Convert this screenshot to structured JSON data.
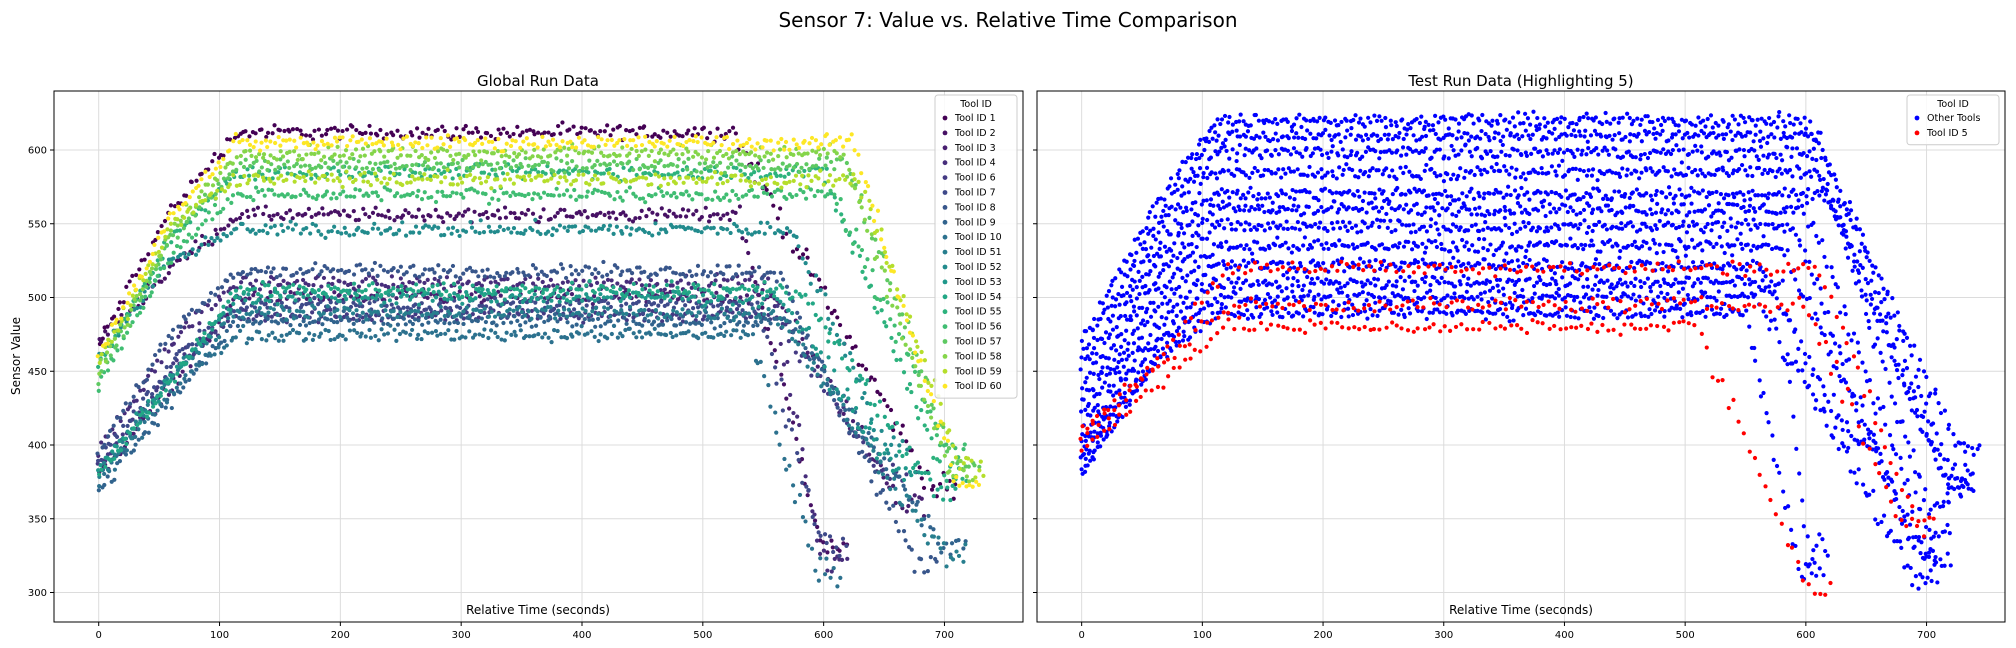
{
  "figure": {
    "title": "Sensor 7: Value vs. Relative Time Comparison"
  },
  "chart_data": [
    {
      "type": "scatter",
      "title": "Global Run Data",
      "xlabel": "Relative Time (seconds)",
      "ylabel": "Sensor Value",
      "xlim": [
        -37,
        765
      ],
      "ylim": [
        280,
        640
      ],
      "xticks": [
        0,
        100,
        200,
        300,
        400,
        500,
        600,
        700
      ],
      "yticks": [
        300,
        350,
        400,
        450,
        500,
        550,
        600
      ],
      "grid": true,
      "legend": {
        "title": "Tool ID",
        "placement": "top-right"
      },
      "colormap": "viridis",
      "series": [
        {
          "name": "Tool ID 1",
          "color": "#440154",
          "profile": {
            "start": 468,
            "r1": [
              60,
              560
            ],
            "r2": [
              115,
              612
            ],
            "plateau_end": 525,
            "drop_end": 690,
            "end": 370
          }
        },
        {
          "name": "Tool ID 2",
          "color": "#471164",
          "profile": {
            "start": 470,
            "r1": [
              60,
              520
            ],
            "r2": [
              115,
              556
            ],
            "plateau_end": 530,
            "drop_end": 600,
            "end": 330
          }
        },
        {
          "name": "Tool ID 3",
          "color": "#481f70",
          "profile": {
            "start": 380,
            "r1": [
              70,
              450
            ],
            "r2": [
              115,
              500
            ],
            "plateau_end": 560,
            "drop_end": 665,
            "end": 360
          }
        },
        {
          "name": "Tool ID 4",
          "color": "#472d7b",
          "profile": {
            "start": 395,
            "r1": [
              60,
              470
            ],
            "r2": [
              115,
              510
            ],
            "plateau_end": 555,
            "drop_end": 600,
            "end": 320
          }
        },
        {
          "name": "Tool ID 6",
          "color": "#443a83",
          "profile": {
            "start": 385,
            "r1": [
              65,
              455
            ],
            "r2": [
              115,
              488
            ],
            "plateau_end": 560,
            "drop_end": 650,
            "end": 380
          }
        },
        {
          "name": "Tool ID 7",
          "color": "#3e4989",
          "profile": {
            "start": 390,
            "r1": [
              65,
              460
            ],
            "r2": [
              115,
              495
            ],
            "plateau_end": 545,
            "drop_end": 600,
            "end": 330
          }
        },
        {
          "name": "Tool ID 8",
          "color": "#38568b",
          "profile": {
            "start": 395,
            "r1": [
              55,
              470
            ],
            "r2": [
              115,
              518
            ],
            "plateau_end": 560,
            "drop_end": 675,
            "end": 320
          }
        },
        {
          "name": "Tool ID 9",
          "color": "#31638d",
          "profile": {
            "start": 370,
            "r1": [
              70,
              440
            ],
            "r2": [
              115,
              484
            ],
            "plateau_end": 570,
            "drop_end": 700,
            "end": 330
          }
        },
        {
          "name": "Tool ID 10",
          "color": "#2c718e",
          "profile": {
            "start": 375,
            "r1": [
              70,
              445
            ],
            "r2": [
              115,
              475
            ],
            "plateau_end": 540,
            "drop_end": 595,
            "end": 315
          }
        },
        {
          "name": "Tool ID 51",
          "color": "#277e8e",
          "profile": {
            "start": 380,
            "r1": [
              65,
              450
            ],
            "r2": [
              115,
              490
            ],
            "plateau_end": 560,
            "drop_end": 700,
            "end": 325
          }
        },
        {
          "name": "Tool ID 52",
          "color": "#228b8d",
          "profile": {
            "start": 460,
            "r1": [
              60,
              525
            ],
            "r2": [
              115,
              546
            ],
            "plateau_end": 575,
            "drop_end": 650,
            "end": 400
          }
        },
        {
          "name": "Tool ID 53",
          "color": "#1f988b",
          "profile": {
            "start": 385,
            "r1": [
              70,
              455
            ],
            "r2": [
              115,
              500
            ],
            "plateau_end": 565,
            "drop_end": 660,
            "end": 380
          }
        },
        {
          "name": "Tool ID 54",
          "color": "#22a785",
          "profile": {
            "start": 380,
            "r1": [
              65,
              450
            ],
            "r2": [
              115,
              505
            ],
            "plateau_end": 580,
            "drop_end": 690,
            "end": 370
          }
        },
        {
          "name": "Tool ID 55",
          "color": "#2db27d",
          "profile": {
            "start": 455,
            "r1": [
              60,
              540
            ],
            "r2": [
              115,
              585
            ],
            "plateau_end": 600,
            "drop_end": 700,
            "end": 380
          }
        },
        {
          "name": "Tool ID 56",
          "color": "#40bd72",
          "profile": {
            "start": 440,
            "r1": [
              60,
              530
            ],
            "r2": [
              115,
              570
            ],
            "plateau_end": 610,
            "drop_end": 700,
            "end": 400
          }
        },
        {
          "name": "Tool ID 57",
          "color": "#5ec962",
          "profile": {
            "start": 445,
            "r1": [
              60,
              540
            ],
            "r2": [
              115,
              590
            ],
            "plateau_end": 620,
            "drop_end": 710,
            "end": 385
          }
        },
        {
          "name": "Tool ID 58",
          "color": "#85d54a",
          "profile": {
            "start": 450,
            "r1": [
              60,
              545
            ],
            "r2": [
              115,
              598
            ],
            "plateau_end": 615,
            "drop_end": 705,
            "end": 380
          }
        },
        {
          "name": "Tool ID 59",
          "color": "#b5de2b",
          "profile": {
            "start": 455,
            "r1": [
              60,
              550
            ],
            "r2": [
              115,
              580
            ],
            "plateau_end": 630,
            "drop_end": 715,
            "end": 385
          }
        },
        {
          "name": "Tool ID 60",
          "color": "#fde725",
          "profile": {
            "start": 460,
            "r1": [
              60,
              555
            ],
            "r2": [
              115,
              605
            ],
            "plateau_end": 625,
            "drop_end": 710,
            "end": 375
          }
        }
      ]
    },
    {
      "type": "scatter",
      "title": "Test Run Data (Highlighting 5)",
      "xlabel": "Relative Time (seconds)",
      "ylabel": "",
      "xlim": [
        -37,
        765
      ],
      "ylim": [
        280,
        640
      ],
      "xticks": [
        0,
        100,
        200,
        300,
        400,
        500,
        600,
        700
      ],
      "yticks": [
        300,
        350,
        400,
        450,
        500,
        550,
        600
      ],
      "grid": true,
      "legend": {
        "title": "Tool ID",
        "placement": "top-right"
      },
      "series": [
        {
          "name": "Other Tools",
          "color": "#0000ff",
          "profile_set": [
            {
              "start": 470,
              "r1": [
                60,
                560
              ],
              "r2": [
                110,
                620
              ],
              "plateau_end": 600,
              "drop_end": 725,
              "end": 400
            },
            {
              "start": 460,
              "r1": [
                60,
                550
              ],
              "r2": [
                110,
                610
              ],
              "plateau_end": 610,
              "drop_end": 720,
              "end": 380
            },
            {
              "start": 450,
              "r1": [
                60,
                540
              ],
              "r2": [
                110,
                598
              ],
              "plateau_end": 605,
              "drop_end": 715,
              "end": 375
            },
            {
              "start": 440,
              "r1": [
                60,
                530
              ],
              "r2": [
                110,
                585
              ],
              "plateau_end": 610,
              "drop_end": 720,
              "end": 370
            },
            {
              "start": 430,
              "r1": [
                60,
                520
              ],
              "r2": [
                110,
                570
              ],
              "plateau_end": 620,
              "drop_end": 700,
              "end": 360
            },
            {
              "start": 420,
              "r1": [
                60,
                510
              ],
              "r2": [
                110,
                560
              ],
              "plateau_end": 600,
              "drop_end": 700,
              "end": 340
            },
            {
              "start": 410,
              "r1": [
                60,
                500
              ],
              "r2": [
                110,
                548
              ],
              "plateau_end": 590,
              "drop_end": 690,
              "end": 330
            },
            {
              "start": 400,
              "r1": [
                60,
                490
              ],
              "r2": [
                110,
                535
              ],
              "plateau_end": 580,
              "drop_end": 700,
              "end": 320
            },
            {
              "start": 395,
              "r1": [
                60,
                480
              ],
              "r2": [
                110,
                522
              ],
              "plateau_end": 560,
              "drop_end": 640,
              "end": 400
            },
            {
              "start": 390,
              "r1": [
                60,
                470
              ],
              "r2": [
                110,
                510
              ],
              "plateau_end": 580,
              "drop_end": 600,
              "end": 330
            },
            {
              "start": 385,
              "r1": [
                60,
                460
              ],
              "r2": [
                110,
                500
              ],
              "plateau_end": 560,
              "drop_end": 690,
              "end": 310
            },
            {
              "start": 380,
              "r1": [
                60,
                455
              ],
              "r2": [
                110,
                490
              ],
              "plateau_end": 550,
              "drop_end": 595,
              "end": 315
            }
          ]
        },
        {
          "name": "Tool ID 5",
          "color": "#ff0000",
          "profile_set": [
            {
              "start": 395,
              "r1": [
                60,
                440
              ],
              "r2": [
                120,
                480
              ],
              "plateau_end": 510,
              "drop_end": 605,
              "end": 300
            },
            {
              "start": 405,
              "r1": [
                60,
                450
              ],
              "r2": [
                120,
                495
              ],
              "plateau_end": 600,
              "drop_end": 680,
              "end": 345
            },
            {
              "start": 410,
              "r1": [
                60,
                455
              ],
              "r2": [
                120,
                520
              ],
              "plateau_end": 610,
              "drop_end": 690,
              "end": 350
            }
          ]
        }
      ]
    }
  ]
}
